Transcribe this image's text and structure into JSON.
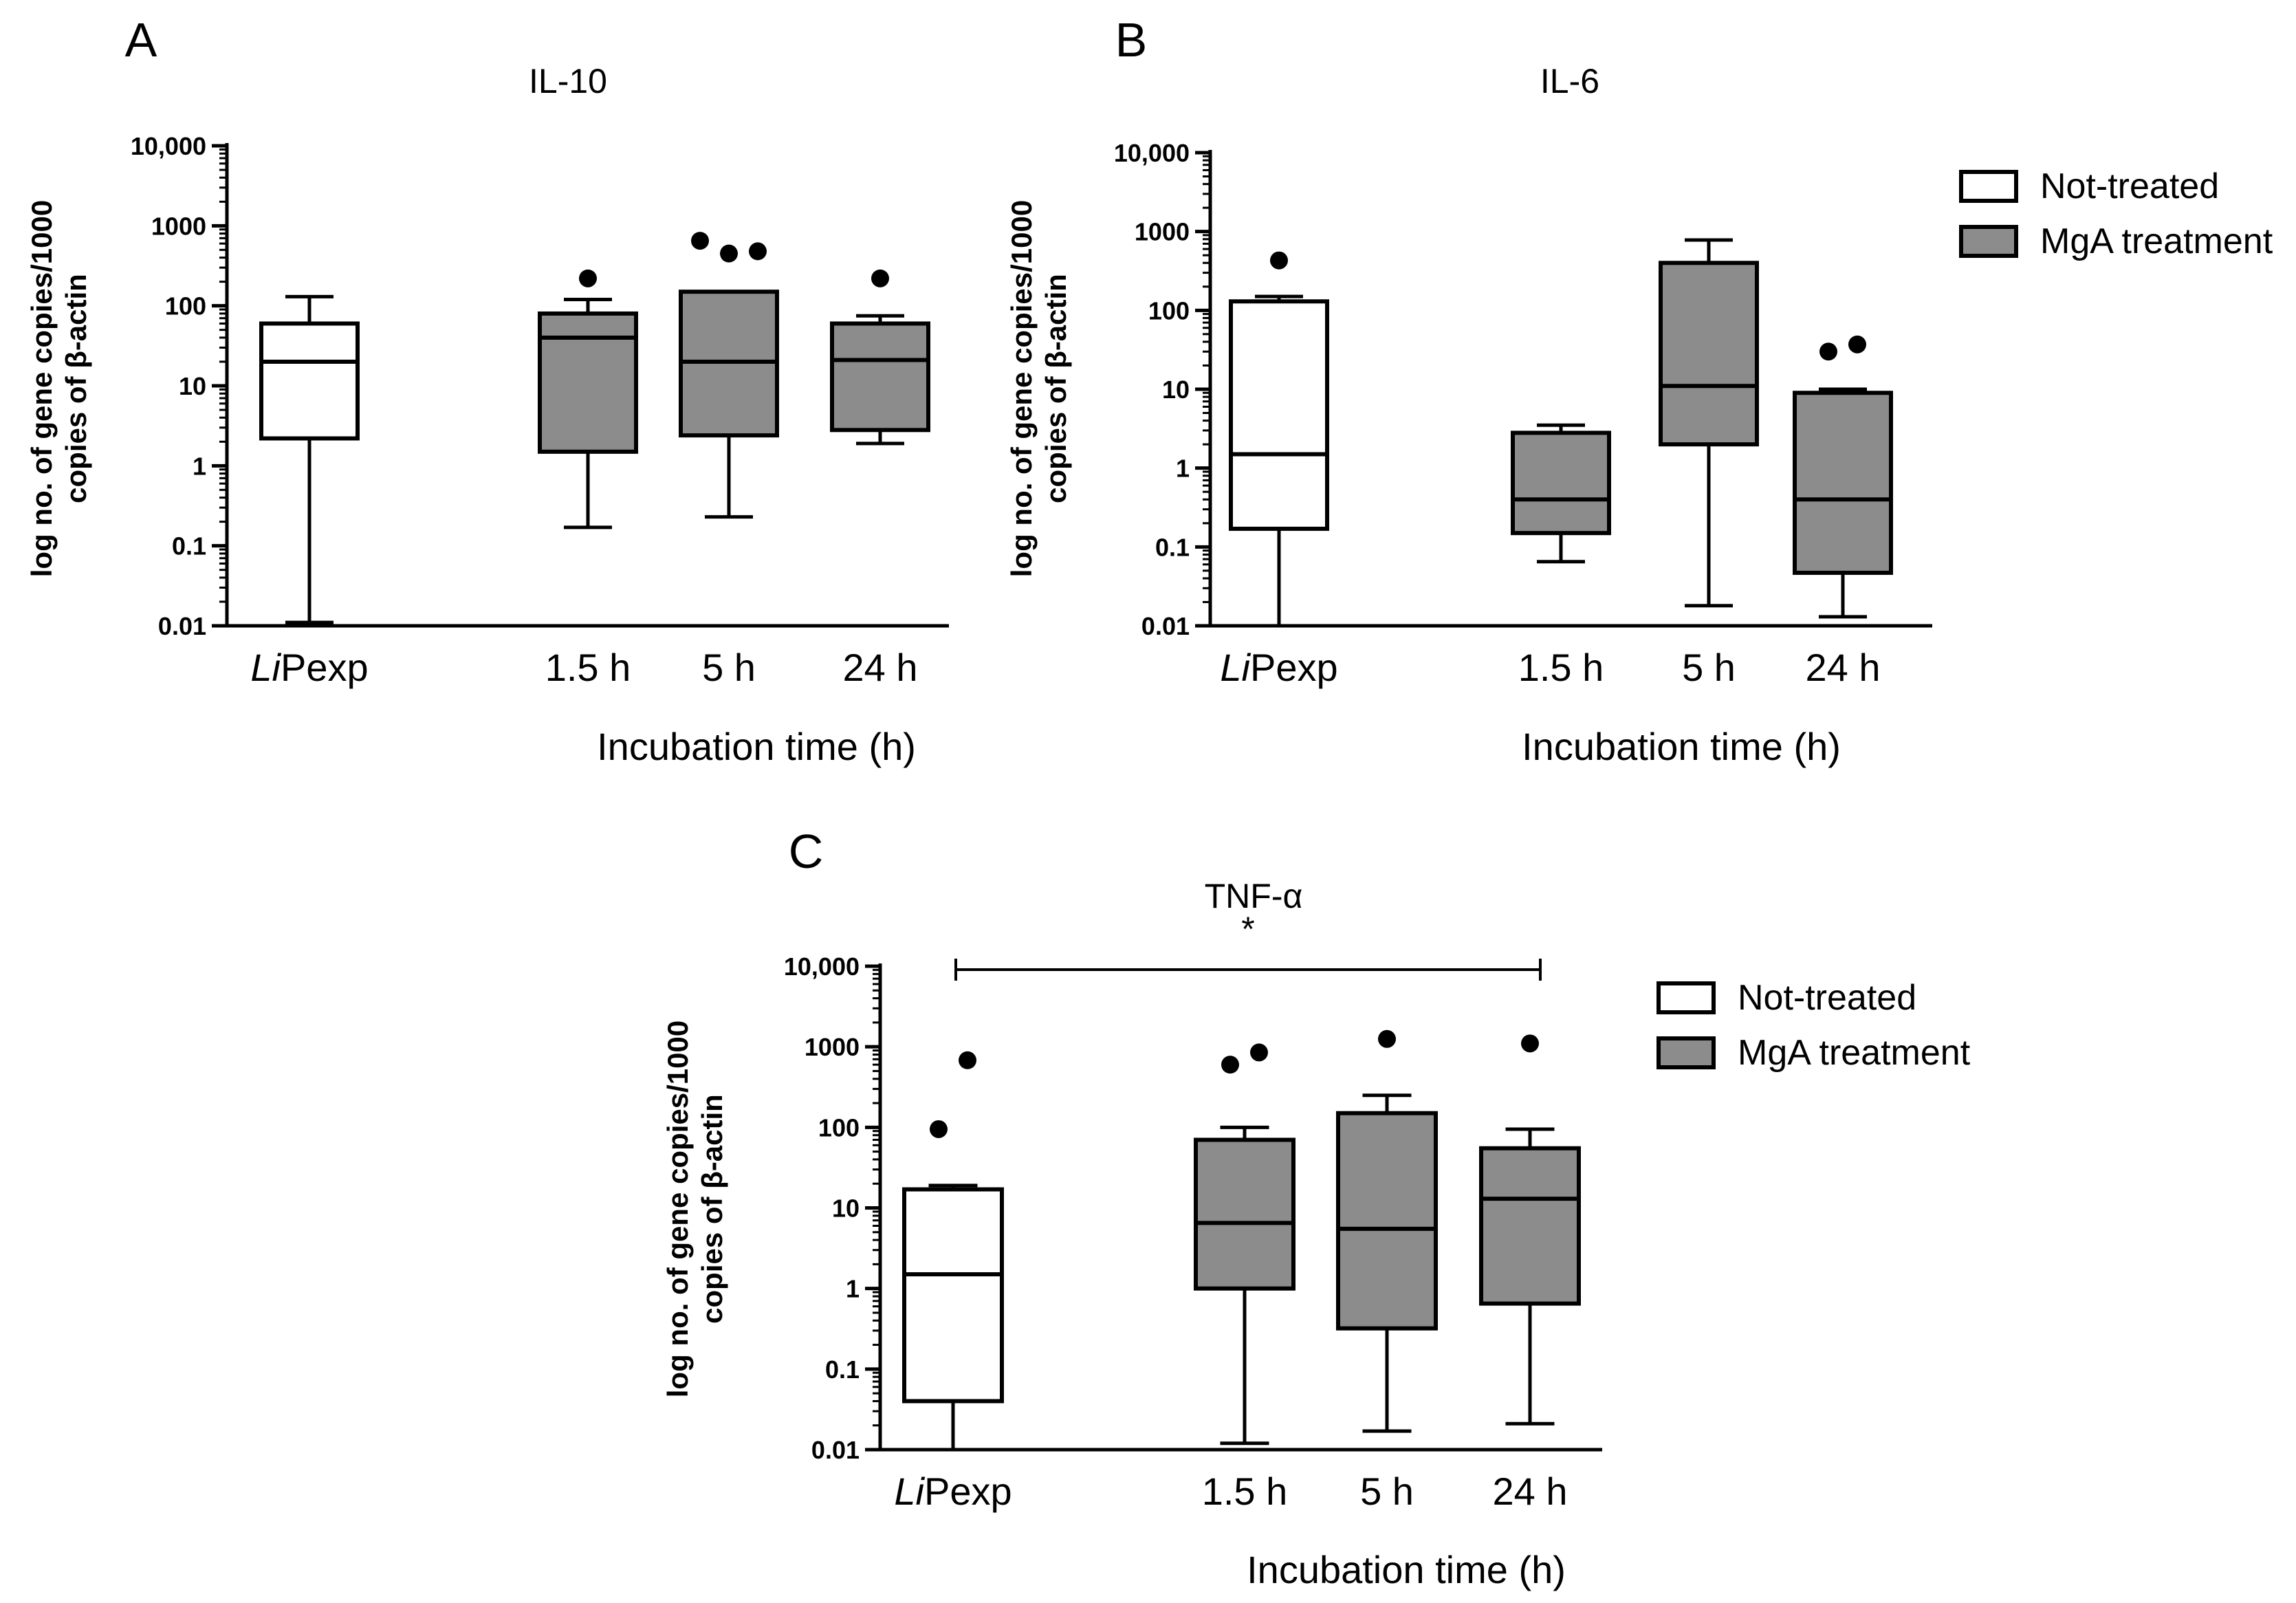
{
  "chart_data": [
    {
      "panel": "A",
      "title": "IL-10",
      "type": "box",
      "scale": "log",
      "ylabel_lines": [
        "log no. of gene copies/1000",
        "copies of β-actin"
      ],
      "xlabel": "Incubation time (h)",
      "y_ticks": [
        "0.01",
        "0.1",
        "1",
        "10",
        "100",
        "1000",
        "10,000"
      ],
      "ylim": [
        0.01,
        10000
      ],
      "categories": [
        {
          "label_italic": "Li",
          "label_rest": "Pexp"
        },
        {
          "label_italic": "",
          "label_rest": "1.5 h"
        },
        {
          "label_italic": "",
          "label_rest": "5 h"
        },
        {
          "label_italic": "",
          "label_rest": "24 h"
        }
      ],
      "boxes": [
        {
          "group": "Not-treated",
          "whisker_low": 0.011,
          "q1": 2.2,
          "median": 20,
          "q3": 60,
          "whisker_high": 130,
          "outliers": []
        },
        {
          "group": "MgA treatment",
          "whisker_low": 0.17,
          "q1": 1.5,
          "median": 40,
          "q3": 80,
          "whisker_high": 120,
          "outliers": [
            220
          ]
        },
        {
          "group": "MgA treatment",
          "whisker_low": 0.23,
          "q1": 2.4,
          "median": 20,
          "q3": 150,
          "whisker_high": 150,
          "outliers": [
            650,
            450,
            480
          ]
        },
        {
          "group": "MgA treatment",
          "whisker_low": 1.9,
          "q1": 2.8,
          "median": 21,
          "q3": 60,
          "whisker_high": 75,
          "outliers": [
            220
          ]
        }
      ]
    },
    {
      "panel": "B",
      "title": "IL-6",
      "type": "box",
      "scale": "log",
      "ylabel_lines": [
        "log no. of gene copies/1000",
        "copies of β-actin"
      ],
      "xlabel": "Incubation time (h)",
      "y_ticks": [
        "0.01",
        "0.1",
        "1",
        "10",
        "100",
        "1000",
        "10,000"
      ],
      "ylim": [
        0.01,
        10000
      ],
      "categories": [
        {
          "label_italic": "Li",
          "label_rest": "Pexp"
        },
        {
          "label_italic": "",
          "label_rest": "1.5 h"
        },
        {
          "label_italic": "",
          "label_rest": "5 h"
        },
        {
          "label_italic": "",
          "label_rest": "24 h"
        }
      ],
      "boxes": [
        {
          "group": "Not-treated",
          "whisker_low": 0.01,
          "q1": 0.17,
          "median": 1.5,
          "q3": 130,
          "whisker_high": 150,
          "outliers": [
            430
          ]
        },
        {
          "group": "MgA treatment",
          "whisker_low": 0.065,
          "q1": 0.15,
          "median": 0.4,
          "q3": 2.8,
          "whisker_high": 3.5,
          "outliers": []
        },
        {
          "group": "MgA treatment",
          "whisker_low": 0.018,
          "q1": 2.0,
          "median": 11,
          "q3": 400,
          "whisker_high": 780,
          "outliers": []
        },
        {
          "group": "MgA treatment",
          "whisker_low": 0.013,
          "q1": 0.047,
          "median": 0.4,
          "q3": 9,
          "whisker_high": 10,
          "outliers": [
            30,
            37
          ]
        }
      ],
      "legend": [
        {
          "label": "Not-treated",
          "fill": "#ffffff"
        },
        {
          "label": "MgA treatment",
          "fill": "#8c8c8c"
        }
      ]
    },
    {
      "panel": "C",
      "title": "TNF-α",
      "type": "box",
      "scale": "log",
      "ylabel_lines": [
        "log no. of gene copies/1000",
        "copies of β-actin"
      ],
      "xlabel": "Incubation time (h)",
      "significance": "*",
      "y_ticks": [
        "0.01",
        "0.1",
        "1",
        "10",
        "100",
        "1000",
        "10,000"
      ],
      "ylim": [
        0.01,
        10000
      ],
      "categories": [
        {
          "label_italic": "Li",
          "label_rest": "Pexp"
        },
        {
          "label_italic": "",
          "label_rest": "1.5 h"
        },
        {
          "label_italic": "",
          "label_rest": "5 h"
        },
        {
          "label_italic": "",
          "label_rest": "24 h"
        }
      ],
      "boxes": [
        {
          "group": "Not-treated",
          "whisker_low": 0.01,
          "q1": 0.04,
          "median": 1.5,
          "q3": 17,
          "whisker_high": 19,
          "outliers": [
            95,
            680
          ]
        },
        {
          "group": "MgA treatment",
          "whisker_low": 0.012,
          "q1": 1.0,
          "median": 6.5,
          "q3": 70,
          "whisker_high": 100,
          "outliers": [
            600,
            850
          ]
        },
        {
          "group": "MgA treatment",
          "whisker_low": 0.017,
          "q1": 0.32,
          "median": 5.5,
          "q3": 150,
          "whisker_high": 250,
          "outliers": [
            1250
          ]
        },
        {
          "group": "MgA treatment",
          "whisker_low": 0.021,
          "q1": 0.65,
          "median": 13,
          "q3": 55,
          "whisker_high": 95,
          "outliers": [
            1100
          ]
        }
      ],
      "legend": [
        {
          "label": "Not-treated",
          "fill": "#ffffff"
        },
        {
          "label": "MgA treatment",
          "fill": "#8c8c8c"
        }
      ]
    }
  ],
  "colors": {
    "not_treated": "#ffffff",
    "mga_treatment": "#8c8c8c",
    "stroke": "#000000"
  }
}
